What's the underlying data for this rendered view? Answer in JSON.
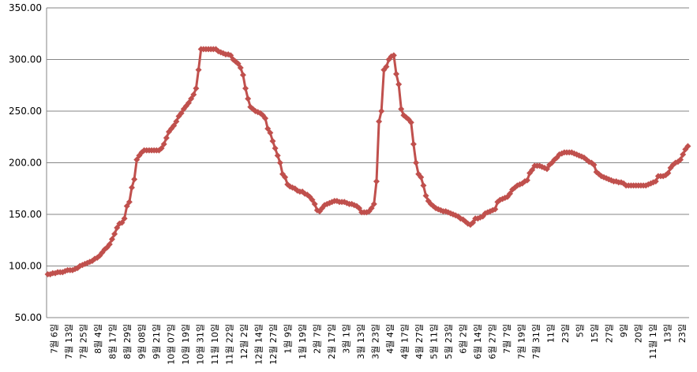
{
  "chart_data": {
    "type": "line",
    "title": "",
    "xlabel": "",
    "ylabel": "",
    "ylim": [
      50,
      350
    ],
    "yticks": [
      "50.00",
      "100.00",
      "150.00",
      "200.00",
      "250.00",
      "300.00",
      "350.00"
    ],
    "x_tick_labels": [
      "7월 6일",
      "7월 13일",
      "7월 25일",
      "8월 4일",
      "8월 17일",
      "8월 29일",
      "9월 08일",
      "9월 21일",
      "10월 07일",
      "10월 19일",
      "10월 31일",
      "11월 10일",
      "11월 22일",
      "12월 2일",
      "12월 14일",
      "12월 27일",
      "1월 9일",
      "1월 19일",
      "2월 7일",
      "2월 17일",
      "3월 1일",
      "3월 13일",
      "3월 23일",
      "4월 4일",
      "4월 17일",
      "4월 27일",
      "5월 11일",
      "5월 23일",
      "6월 2일",
      "6월 14일",
      "6월 27일",
      "7월 7일",
      "7월 19일",
      "7월 31일",
      "11일",
      "23일",
      "5일",
      "15일",
      "27일",
      "9일",
      "20일",
      "11월 1일",
      "13일",
      "23일"
    ],
    "grid": true,
    "legend": "none",
    "series": [
      {
        "color": "#C0504D",
        "marker": "diamond",
        "values": [
          92,
          92,
          93,
          93,
          94,
          94,
          94,
          95,
          96,
          96,
          96,
          97,
          98,
          100,
          101,
          102,
          103,
          104,
          105,
          107,
          108,
          110,
          113,
          116,
          118,
          121,
          126,
          131,
          137,
          141,
          142,
          146,
          158,
          162,
          176,
          184,
          203,
          207,
          210,
          212,
          212,
          212,
          212,
          212,
          212,
          212,
          214,
          218,
          224,
          230,
          233,
          236,
          240,
          245,
          248,
          252,
          255,
          258,
          262,
          266,
          272,
          290,
          310,
          310,
          310,
          310,
          310,
          310,
          310,
          308,
          307,
          306,
          305,
          305,
          304,
          300,
          298,
          296,
          292,
          285,
          272,
          262,
          254,
          252,
          250,
          249,
          248,
          246,
          243,
          233,
          229,
          221,
          214,
          207,
          200,
          189,
          186,
          179,
          177,
          176,
          175,
          173,
          172,
          172,
          170,
          169,
          167,
          164,
          160,
          154,
          153,
          156,
          159,
          160,
          161,
          162,
          163,
          163,
          162,
          162,
          162,
          161,
          160,
          160,
          159,
          158,
          156,
          152,
          152,
          152,
          153,
          156,
          160,
          182,
          240,
          250,
          290,
          293,
          300,
          303,
          304,
          286,
          276,
          252,
          246,
          244,
          242,
          239,
          218,
          200,
          189,
          186,
          178,
          168,
          163,
          160,
          158,
          156,
          155,
          154,
          153,
          153,
          152,
          151,
          150,
          149,
          148,
          146,
          145,
          143,
          141,
          140,
          142,
          146,
          146,
          147,
          148,
          151,
          152,
          153,
          154,
          155,
          162,
          164,
          165,
          166,
          167,
          170,
          174,
          176,
          178,
          179,
          180,
          182,
          183,
          190,
          193,
          197,
          197,
          197,
          196,
          195,
          194,
          198,
          200,
          203,
          205,
          208,
          209,
          210,
          210,
          210,
          210,
          209,
          208,
          207,
          206,
          205,
          203,
          201,
          200,
          198,
          191,
          189,
          187,
          186,
          185,
          184,
          183,
          182,
          182,
          181,
          181,
          180,
          178,
          178,
          178,
          178,
          178,
          178,
          178,
          178,
          178,
          179,
          180,
          181,
          182,
          187,
          187,
          187,
          188,
          190,
          195,
          198,
          200,
          201,
          203,
          208,
          213,
          216
        ]
      }
    ]
  }
}
